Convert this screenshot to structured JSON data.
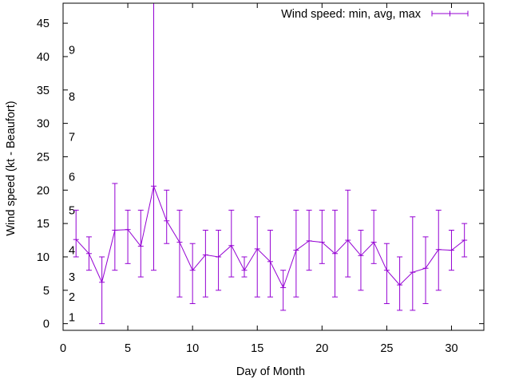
{
  "chart_data": {
    "type": "line",
    "title": "",
    "xlabel": "Day of Month",
    "ylabel": "Wind speed (kt - Beaufort)",
    "xlim": [
      0,
      32.5
    ],
    "ylim": [
      -1,
      48
    ],
    "x_ticks": [
      0,
      5,
      10,
      15,
      20,
      25,
      30
    ],
    "y_ticks": [
      0,
      5,
      10,
      15,
      20,
      25,
      30,
      35,
      40,
      45
    ],
    "grid": false,
    "legend_position": "top-right",
    "color": "#9400d3",
    "series": [
      {
        "name": "Wind speed: min, avg, max",
        "x": [
          1,
          2,
          3,
          4,
          5,
          6,
          7,
          8,
          9,
          10,
          11,
          12,
          13,
          14,
          15,
          16,
          17,
          18,
          19,
          20,
          21,
          22,
          23,
          24,
          25,
          26,
          27,
          28,
          29,
          30,
          31
        ],
        "avg": [
          12.6,
          10.5,
          6.2,
          14.0,
          14.1,
          11.6,
          20.6,
          15.4,
          12.2,
          8.0,
          10.3,
          10.0,
          11.7,
          8.0,
          11.2,
          9.3,
          5.4,
          11.0,
          12.4,
          12.2,
          10.5,
          12.5,
          10.2,
          12.2,
          8.0,
          5.8,
          7.7,
          8.3,
          11.1,
          11.0,
          12.5
        ],
        "min": [
          10,
          8,
          0,
          8,
          9,
          7,
          8,
          12,
          4,
          3,
          4,
          5,
          7,
          7,
          4,
          4,
          2,
          4,
          8,
          9,
          4,
          7,
          5,
          9,
          3,
          2,
          2,
          3,
          5,
          8,
          10
        ],
        "max": [
          17,
          13,
          10,
          21,
          17,
          17,
          48,
          20,
          17,
          12,
          14,
          14,
          17,
          10,
          16,
          14,
          8,
          17,
          17,
          17,
          17,
          20,
          14,
          17,
          12,
          10,
          16,
          13,
          17,
          14,
          15
        ]
      }
    ],
    "annotations": [
      {
        "text": "1",
        "y": 1
      },
      {
        "text": "2",
        "y": 4
      },
      {
        "text": "3",
        "y": 7
      },
      {
        "text": "4",
        "y": 11
      },
      {
        "text": "5",
        "y": 17
      },
      {
        "text": "6",
        "y": 22
      },
      {
        "text": "7",
        "y": 28
      },
      {
        "text": "8",
        "y": 34
      },
      {
        "text": "9",
        "y": 41
      }
    ]
  }
}
